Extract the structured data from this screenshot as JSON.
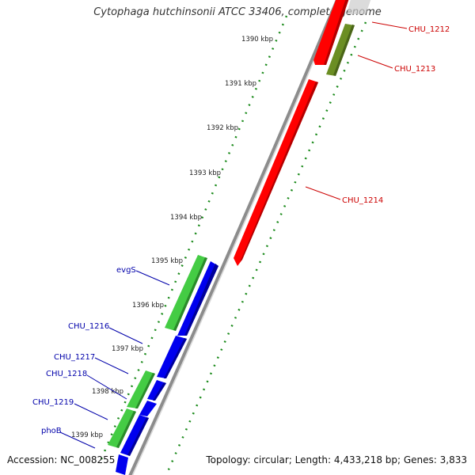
{
  "title": "Cytophaga hutchinsonii ATCC 33406, complete genome",
  "footer": {
    "accession": "Accession: NC_008255",
    "summary": "Topology: circular; Length: 4,433,218 bp; Genes: 3,833"
  },
  "colors": {
    "backbone": "#8c8c8c",
    "tick_dots": "#1a8a1a",
    "forward_red": "#ff0000",
    "forward_olive": "#6b8e23",
    "reverse_green": "#44cc44",
    "reverse_blue": "#0000ee",
    "label_red": "#cc0000",
    "label_blue": "#0000aa"
  },
  "ticks": [
    "1390 kbp",
    "1391 kbp",
    "1392 kbp",
    "1393 kbp",
    "1394 kbp",
    "1395 kbp",
    "1396 kbp",
    "1397 kbp",
    "1398 kbp",
    "1399 kbp"
  ],
  "genes": [
    {
      "name": "CHU_1212",
      "strand": "forward",
      "color": "red"
    },
    {
      "name": "CHU_1213",
      "strand": "forward",
      "color": "olive"
    },
    {
      "name": "CHU_1214",
      "strand": "forward",
      "color": "red"
    },
    {
      "name": "evgS",
      "strand": "reverse",
      "color": "green"
    },
    {
      "name": "CHU_1216",
      "strand": "reverse",
      "color": "blue"
    },
    {
      "name": "CHU_1217",
      "strand": "reverse",
      "color": "blue"
    },
    {
      "name": "CHU_1218",
      "strand": "reverse",
      "color": "blue"
    },
    {
      "name": "CHU_1219",
      "strand": "reverse",
      "color": "green"
    },
    {
      "name": "phoB",
      "strand": "reverse",
      "color": "blue"
    }
  ]
}
